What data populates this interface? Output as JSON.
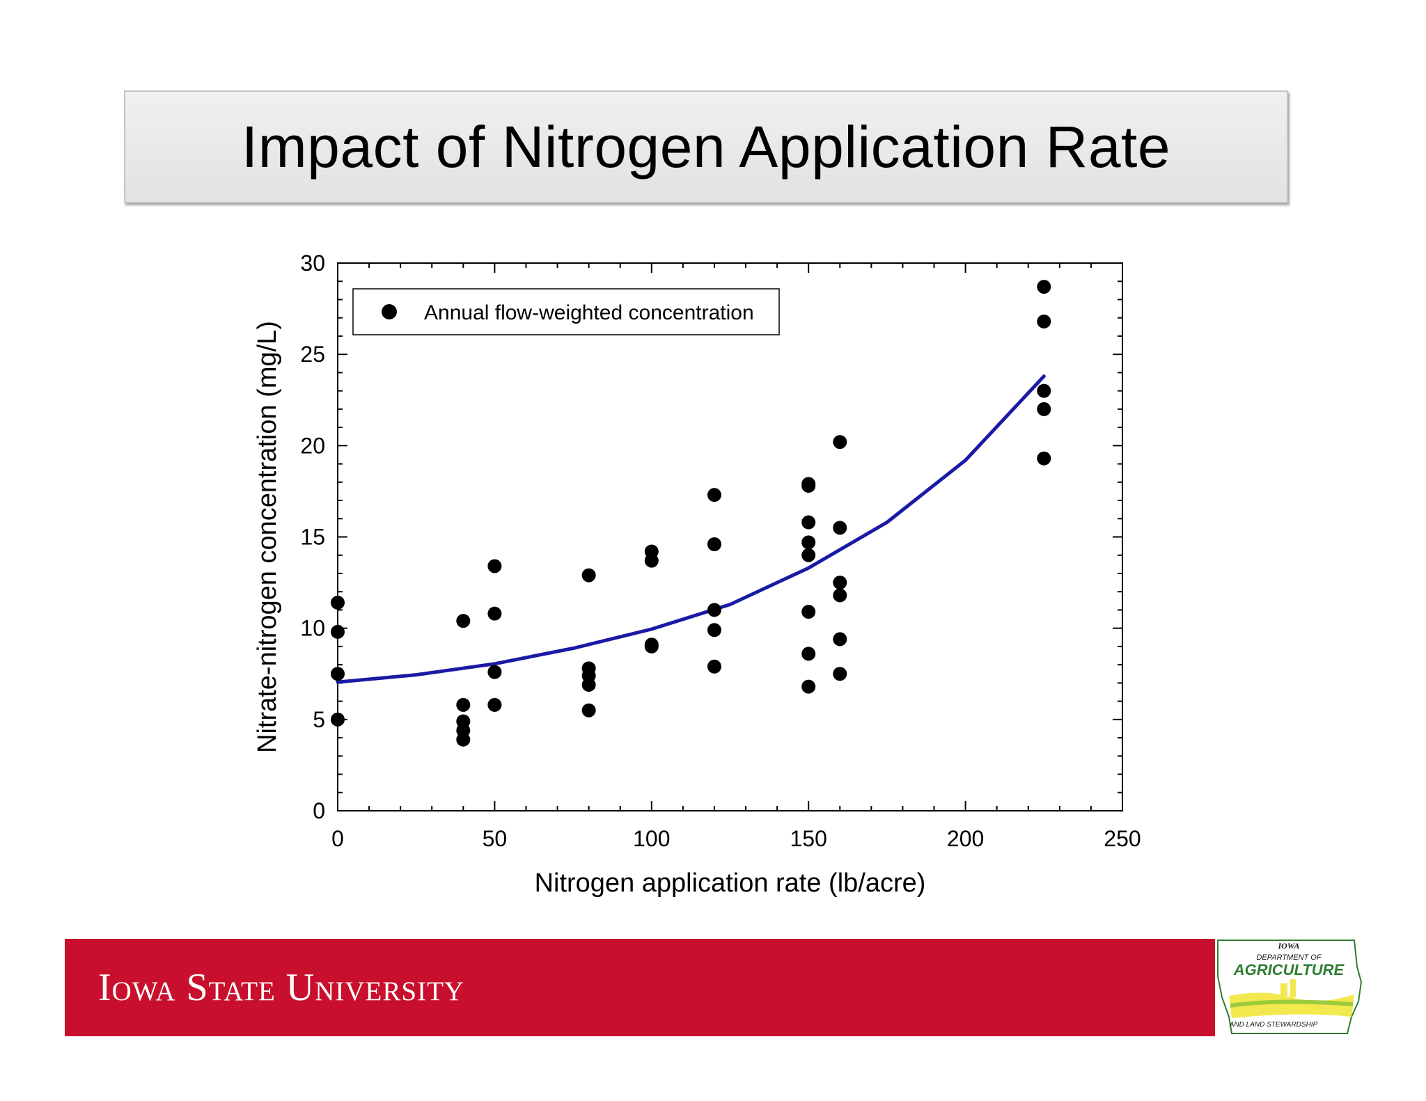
{
  "slide": {
    "title": "Impact of Nitrogen Application Rate",
    "footer_wordmark": "Iowa State University",
    "partner_logo": {
      "line1": "IOWA",
      "line2": "DEPARTMENT OF",
      "line3": "AGRICULTURE",
      "line4": "AND LAND STEWARDSHIP"
    }
  },
  "colors": {
    "brand_red": "#c8102e",
    "fit_line": "#1a1aa6",
    "points": "#000000"
  },
  "chart_data": {
    "type": "scatter",
    "xlabel": "Nitrogen application rate (lb/acre)",
    "ylabel": "Nitrate-nitrogen concentration (mg/L)",
    "xlim": [
      0,
      250
    ],
    "ylim": [
      0,
      30
    ],
    "xticks": [
      0,
      50,
      100,
      150,
      200,
      250
    ],
    "yticks": [
      0,
      5,
      10,
      15,
      20,
      25,
      30
    ],
    "legend_position": "top-left",
    "series": [
      {
        "name": "Annual flow-weighted concentration",
        "marker": "circle",
        "points": [
          [
            0,
            11.4
          ],
          [
            0,
            9.8
          ],
          [
            0,
            7.5
          ],
          [
            0,
            5.0
          ],
          [
            40,
            10.4
          ],
          [
            40,
            5.8
          ],
          [
            40,
            4.9
          ],
          [
            40,
            4.4
          ],
          [
            40,
            3.9
          ],
          [
            50,
            13.4
          ],
          [
            50,
            10.8
          ],
          [
            50,
            7.6
          ],
          [
            50,
            5.8
          ],
          [
            80,
            12.9
          ],
          [
            80,
            7.8
          ],
          [
            80,
            7.4
          ],
          [
            80,
            6.9
          ],
          [
            80,
            5.5
          ],
          [
            100,
            14.2
          ],
          [
            100,
            13.7
          ],
          [
            100,
            9.1
          ],
          [
            100,
            9.0
          ],
          [
            120,
            17.3
          ],
          [
            120,
            14.6
          ],
          [
            120,
            11.0
          ],
          [
            120,
            9.9
          ],
          [
            120,
            7.9
          ],
          [
            150,
            17.9
          ],
          [
            150,
            17.8
          ],
          [
            150,
            15.8
          ],
          [
            150,
            14.7
          ],
          [
            150,
            14.0
          ],
          [
            150,
            10.9
          ],
          [
            150,
            8.6
          ],
          [
            150,
            6.8
          ],
          [
            160,
            20.2
          ],
          [
            160,
            15.5
          ],
          [
            160,
            12.5
          ],
          [
            160,
            11.8
          ],
          [
            160,
            9.4
          ],
          [
            160,
            7.5
          ],
          [
            225,
            28.7
          ],
          [
            225,
            26.8
          ],
          [
            225,
            23.0
          ],
          [
            225,
            22.0
          ],
          [
            225,
            19.3
          ]
        ]
      },
      {
        "type": "line",
        "points": [
          [
            0,
            7.05
          ],
          [
            25,
            7.45
          ],
          [
            50,
            8.05
          ],
          [
            75,
            8.9
          ],
          [
            100,
            9.95
          ],
          [
            125,
            11.3
          ],
          [
            150,
            13.3
          ],
          [
            175,
            15.8
          ],
          [
            200,
            19.2
          ],
          [
            225,
            23.8
          ]
        ]
      }
    ]
  }
}
